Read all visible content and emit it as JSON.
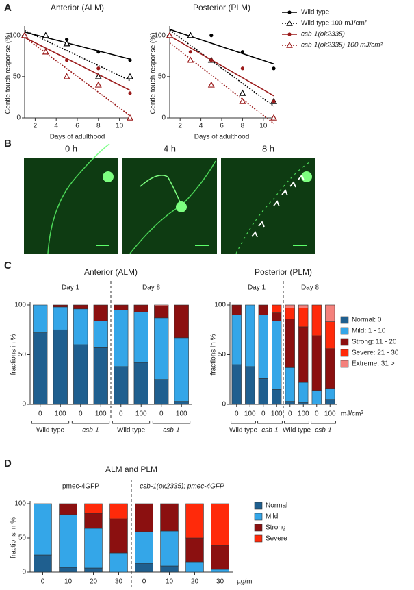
{
  "panel_labels": [
    "A",
    "B",
    "C",
    "D"
  ],
  "images": {
    "labels": [
      "0 h",
      "4 h",
      "8 h"
    ]
  },
  "chart_data": [
    {
      "type": "line",
      "title": "Anterior (ALM)",
      "x_label": "Days of adulthood",
      "y_label": "Gentle touch response (%)",
      "x": [
        1,
        3,
        5,
        8,
        11
      ],
      "xlim": [
        1,
        11
      ],
      "xticks": [
        2,
        4,
        6,
        8,
        10
      ],
      "ylim": [
        0,
        108
      ],
      "yticks": [
        0,
        50,
        100
      ],
      "series": [
        {
          "color": "#000000",
          "marker": "circle",
          "dash": false,
          "values": [
            100,
            100,
            95,
            80,
            70
          ]
        },
        {
          "color": "#000000",
          "marker": "triangle",
          "dash": true,
          "values": [
            100,
            100,
            90,
            50,
            50
          ]
        },
        {
          "color": "#9b1a1a",
          "marker": "circle",
          "dash": false,
          "values": [
            100,
            80,
            70,
            60,
            30
          ]
        },
        {
          "color": "#9b1a1a",
          "marker": "triangle",
          "dash": true,
          "values": [
            100,
            80,
            50,
            40,
            0
          ]
        }
      ]
    },
    {
      "type": "line",
      "title": "Posterior (PLM)",
      "x_label": "Days of adulthood",
      "y_label": "Gentle touch response (%)",
      "x": [
        1,
        3,
        5,
        8,
        11
      ],
      "xlim": [
        1,
        11
      ],
      "xticks": [
        2,
        4,
        6,
        8,
        10
      ],
      "ylim": [
        0,
        108
      ],
      "yticks": [
        0,
        50,
        100
      ],
      "series": [
        {
          "name": "Wild type",
          "color": "#000000",
          "marker": "circle",
          "dash": false,
          "values": [
            100,
            100,
            100,
            80,
            60
          ]
        },
        {
          "name": "Wild type 100 mJ/cm²",
          "color": "#000000",
          "marker": "triangle",
          "dash": true,
          "values": [
            100,
            100,
            70,
            30,
            20
          ]
        },
        {
          "name": "csb-1(ok2335)",
          "color": "#9b1a1a",
          "marker": "circle",
          "dash": false,
          "values": [
            100,
            80,
            70,
            60,
            20
          ]
        },
        {
          "name": "csb-1(ok2335) 100 mJ/cm²",
          "color": "#9b1a1a",
          "marker": "triangle",
          "dash": true,
          "values": [
            100,
            70,
            40,
            20,
            0
          ]
        }
      ]
    },
    {
      "type": "stacked_bar",
      "title": "Anterior (ALM)",
      "y_label": "fractions in %",
      "groups": [
        "Day 1",
        "Day 8"
      ],
      "subgroups": [
        "Wild type",
        "csb-1",
        "Wild type",
        "csb-1"
      ],
      "categories": [
        "0",
        "100",
        "0",
        "100",
        "0",
        "100",
        "0",
        "100"
      ],
      "ylim": [
        0,
        100
      ],
      "yticks": [
        0,
        50,
        100
      ],
      "series": [
        {
          "color": "#1f5f8f",
          "values": [
            72,
            75,
            60,
            57,
            38,
            42,
            25,
            3
          ]
        },
        {
          "color": "#34a6e8",
          "values": [
            28,
            23,
            36,
            27,
            57,
            51,
            62,
            64
          ]
        },
        {
          "color": "#8b1010",
          "values": [
            0,
            2,
            4,
            16,
            5,
            7,
            12,
            33
          ]
        },
        {
          "color": "#ff2a0a",
          "values": [
            0,
            0,
            0,
            0,
            0,
            0,
            0,
            0
          ]
        },
        {
          "color": "#f4817c",
          "values": [
            0,
            0,
            0,
            0,
            0,
            0,
            1,
            0
          ]
        }
      ]
    },
    {
      "type": "stacked_bar",
      "title": "Posterior (PLM)",
      "y_label": "fractions in %",
      "x_unit": "mJ/cm²",
      "groups": [
        "Day 1",
        "Day 8"
      ],
      "subgroups": [
        "Wild type",
        "csb-1",
        "Wild type",
        "csb-1"
      ],
      "categories": [
        "0",
        "100",
        "0",
        "100",
        "0",
        "100",
        "0",
        "100"
      ],
      "ylim": [
        0,
        100
      ],
      "yticks": [
        0,
        50,
        100
      ],
      "series": [
        {
          "name": "Normal: 0",
          "color": "#1f5f8f",
          "values": [
            40,
            38,
            26,
            15,
            3,
            2,
            0,
            5
          ]
        },
        {
          "name": "Mild: 1 - 10",
          "color": "#34a6e8",
          "values": [
            50,
            62,
            64,
            69,
            34,
            20,
            14,
            11
          ]
        },
        {
          "name": "Strong: 11 - 20",
          "color": "#8b1010",
          "values": [
            10,
            0,
            10,
            8,
            49,
            56,
            55,
            40
          ]
        },
        {
          "name": "Severe: 21 - 30",
          "color": "#ff2a0a",
          "values": [
            0,
            0,
            0,
            8,
            11,
            19,
            31,
            27
          ]
        },
        {
          "name": "Extreme: 31 >",
          "color": "#f4817c",
          "values": [
            0,
            0,
            0,
            0,
            3,
            3,
            0,
            17
          ]
        }
      ]
    },
    {
      "type": "stacked_bar",
      "title": "ALM and PLM",
      "y_label": "fractions in %",
      "x_unit": "µg/ml",
      "groups": [
        "pmec-4GFP",
        "csb-1(ok2335); pmec-4GFP"
      ],
      "categories": [
        "0",
        "10",
        "20",
        "30",
        "0",
        "10",
        "20",
        "30"
      ],
      "ylim": [
        0,
        100
      ],
      "yticks": [
        0,
        50,
        100
      ],
      "series": [
        {
          "name": "Normal",
          "color": "#1f5f8f",
          "values": [
            25,
            7,
            6,
            0,
            13,
            9,
            0,
            0
          ]
        },
        {
          "name": "Mild",
          "color": "#34a6e8",
          "values": [
            75,
            77,
            58,
            28,
            46,
            51,
            15,
            4
          ]
        },
        {
          "name": "Strong",
          "color": "#8b1010",
          "values": [
            0,
            16,
            22,
            50,
            41,
            40,
            35,
            35
          ]
        },
        {
          "name": "Severe",
          "color": "#ff2a0a",
          "values": [
            0,
            0,
            14,
            22,
            0,
            0,
            50,
            61
          ]
        }
      ]
    }
  ]
}
